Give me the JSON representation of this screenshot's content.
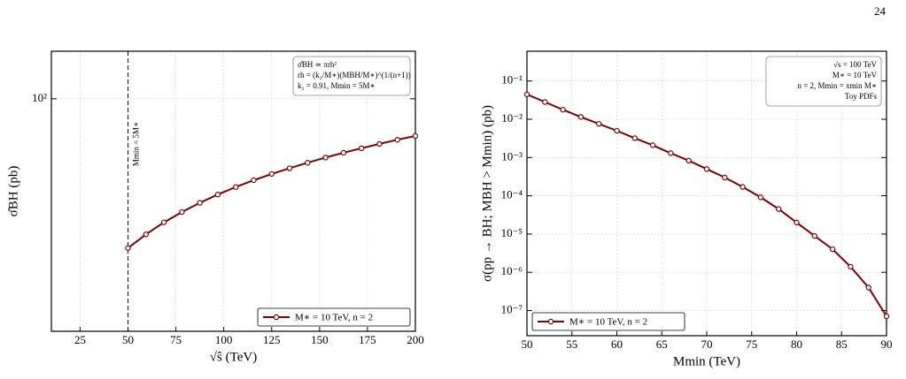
{
  "page_number": "24",
  "chart_data": [
    {
      "type": "line",
      "xlabel": "√ŝ (TeV)",
      "ylabel": "σ̂BH (pb)",
      "log_y": true,
      "grid": true,
      "xlim": [
        10,
        200
      ],
      "xticks": [
        25,
        50,
        75,
        100,
        125,
        150,
        175,
        200
      ],
      "ylim": [
        14.7,
        148
      ],
      "yticks": [
        {
          "value": 100,
          "label": "10²"
        }
      ],
      "x": [
        50,
        59.375,
        68.75,
        78.125,
        87.5,
        96.875,
        106.25,
        115.625,
        125,
        134.375,
        143.75,
        153.125,
        162.5,
        171.875,
        181.25,
        190.625,
        200
      ],
      "series": [
        {
          "name": "M∗ = 10 TeV, n = 2",
          "color": "#800000",
          "values": [
            29.2,
            32.7,
            36.1,
            39.3,
            42.4,
            45.4,
            48.3,
            51.1,
            53.8,
            56.4,
            59.0,
            61.6,
            64.1,
            66.5,
            68.9,
            71.3,
            73.6
          ]
        }
      ],
      "legend": "lower right",
      "vline": {
        "x": 50,
        "label": "Mmin = 5M∗"
      },
      "annotations": [
        "σ̂BH ≃ πrh²",
        "rh = (k₂/M∗)(MBH/M∗)^(1/(n+1))",
        "k₂ = 0.91,   Mmin = 5M∗"
      ]
    },
    {
      "type": "line",
      "xlabel": "Mmin (TeV)",
      "ylabel": "σ(pp → BH; MBH > Mmin) (pb)",
      "log_y": true,
      "grid": true,
      "xlim": [
        50,
        90
      ],
      "xticks": [
        50,
        55,
        60,
        65,
        70,
        75,
        80,
        85,
        90
      ],
      "ylim": [
        2.2e-08,
        0.6
      ],
      "yticks": [
        {
          "value": 0.1,
          "label": "10⁻¹"
        },
        {
          "value": 0.01,
          "label": "10⁻²"
        },
        {
          "value": 0.001,
          "label": "10⁻³"
        },
        {
          "value": 0.0001,
          "label": "10⁻⁴"
        },
        {
          "value": 1e-05,
          "label": "10⁻⁵"
        },
        {
          "value": 1e-06,
          "label": "10⁻⁶"
        },
        {
          "value": 1e-07,
          "label": "10⁻⁷"
        }
      ],
      "x": [
        50,
        52,
        54,
        56,
        58,
        60,
        62,
        64,
        66,
        68,
        70,
        72,
        74,
        76,
        78,
        80,
        82,
        84,
        86,
        88,
        90
      ],
      "series": [
        {
          "name": "M∗ = 10 TeV, n = 2",
          "color": "#800000",
          "values": [
            0.0447,
            0.0282,
            0.0178,
            0.0115,
            0.0076,
            0.005,
            0.0032,
            0.0021,
            0.0013,
            0.00083,
            0.0005,
            0.0003,
            0.00017,
            9.1e-05,
            4.5e-05,
            2e-05,
            8.9e-06,
            4e-06,
            1.4e-06,
            4e-07,
            7.1e-08
          ]
        }
      ],
      "legend": "lower left",
      "annotations": [
        "√s = 100 TeV",
        "M∗ = 10 TeV",
        "n = 2,   Mmin = xmin M∗",
        "Toy PDFs"
      ]
    }
  ]
}
